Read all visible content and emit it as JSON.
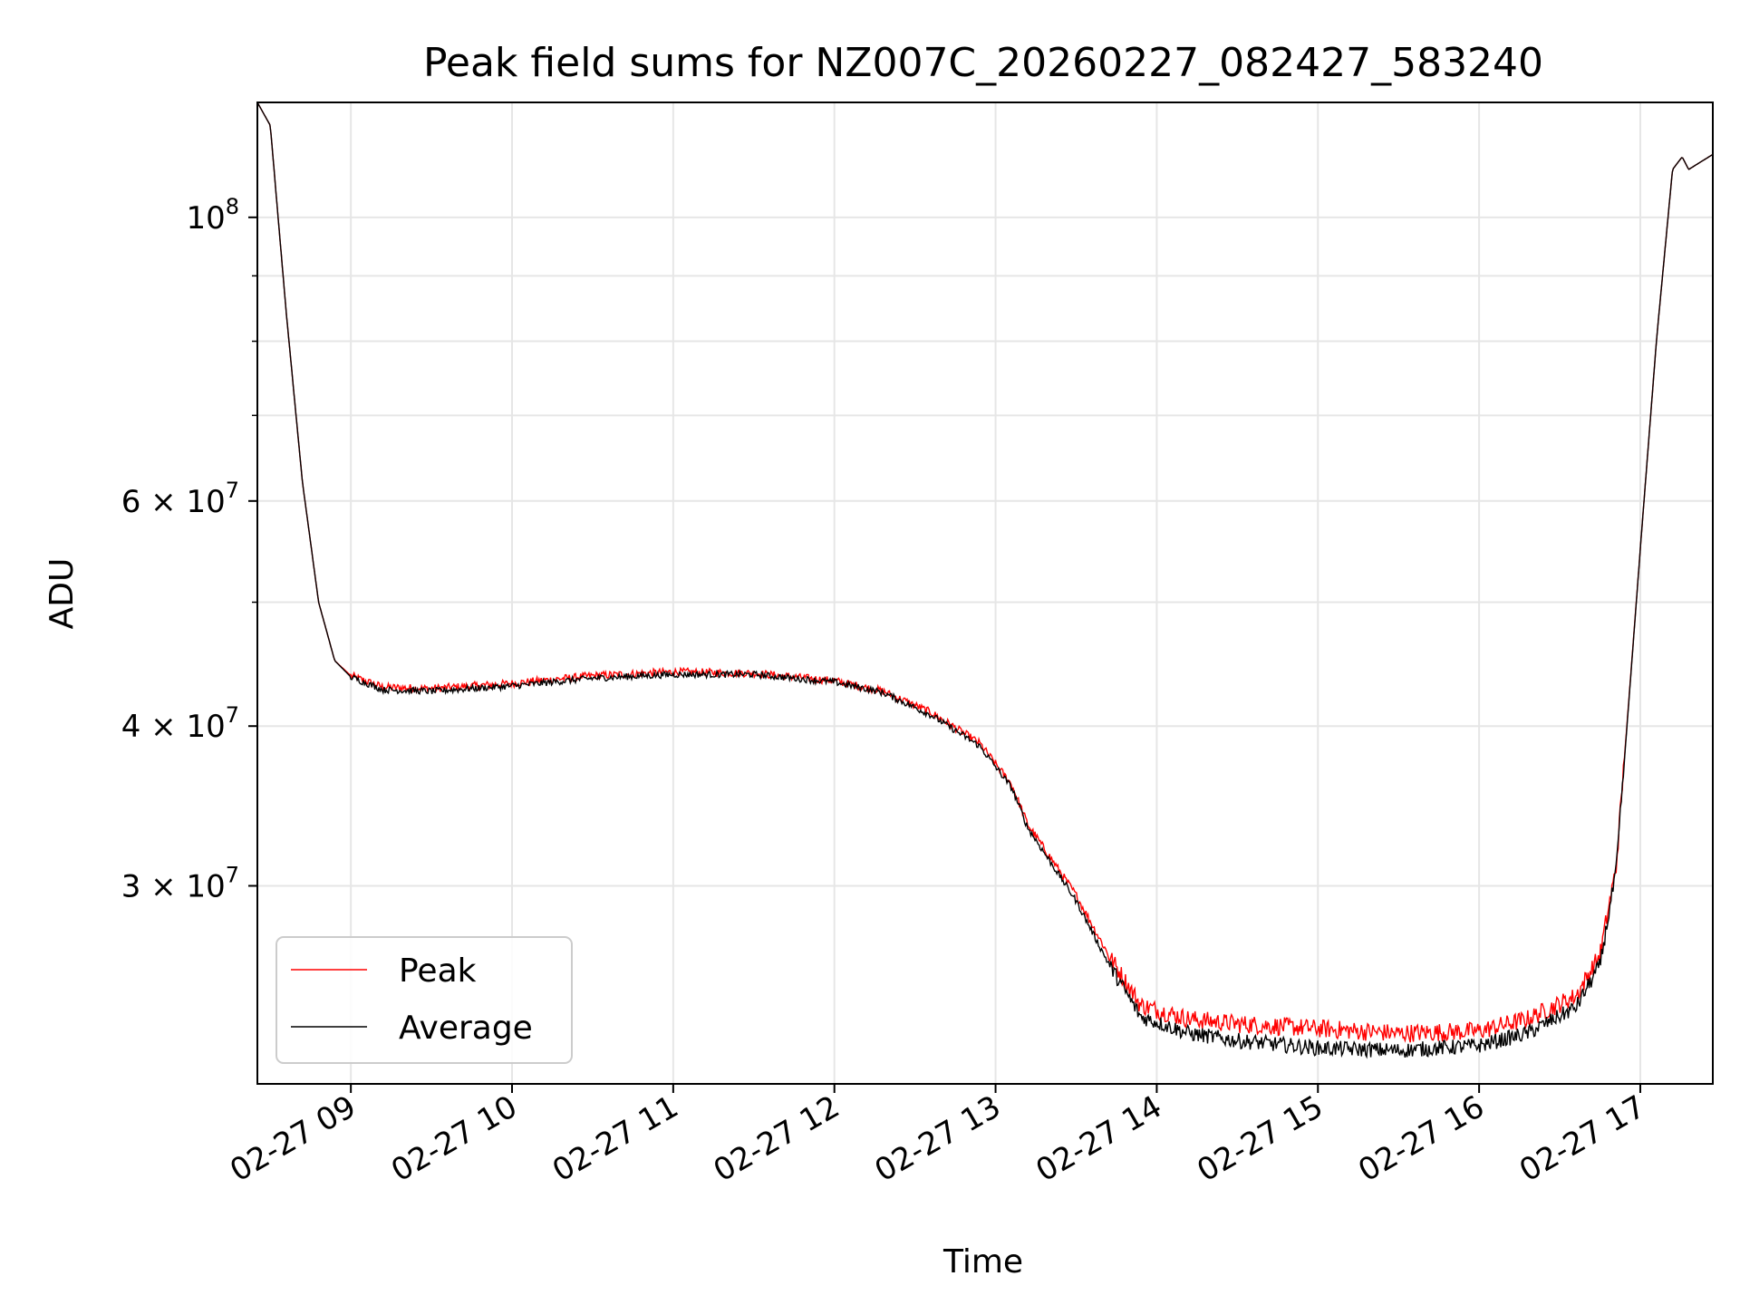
{
  "chart_data": {
    "type": "line",
    "title": "Peak field sums for NZ007C_20260227_082427_583240",
    "xlabel": "Time",
    "ylabel": "ADU",
    "yscale": "log",
    "xlim": [
      8.42,
      17.45
    ],
    "ylim": [
      21000000,
      123000000
    ],
    "x_ticks": [
      {
        "value": 9,
        "label": "02-27 09"
      },
      {
        "value": 10,
        "label": "02-27 10"
      },
      {
        "value": 11,
        "label": "02-27 11"
      },
      {
        "value": 12,
        "label": "02-27 12"
      },
      {
        "value": 13,
        "label": "02-27 13"
      },
      {
        "value": 14,
        "label": "02-27 14"
      },
      {
        "value": 15,
        "label": "02-27 15"
      },
      {
        "value": 16,
        "label": "02-27 16"
      },
      {
        "value": 17,
        "label": "02-27 17"
      }
    ],
    "y_major_ticks": [
      {
        "value": 30000000,
        "mantissa": "3",
        "exponent": "7"
      },
      {
        "value": 40000000,
        "mantissa": "4",
        "exponent": "7"
      },
      {
        "value": 60000000,
        "mantissa": "6",
        "exponent": "7"
      },
      {
        "value": 100000000,
        "mantissa": "",
        "exponent": "8"
      }
    ],
    "y_minor_grid": [
      50000000,
      70000000,
      80000000,
      90000000
    ],
    "grid": true,
    "legend": "lower-left",
    "series": [
      {
        "name": "Peak",
        "color": "#ff0000",
        "noise_amplitude": 0.012,
        "x": [
          8.42,
          8.5,
          8.6,
          8.7,
          8.8,
          8.9,
          9.0,
          9.2,
          9.5,
          10.0,
          10.5,
          11.0,
          11.5,
          12.0,
          12.3,
          12.6,
          12.9,
          13.1,
          13.2,
          13.5,
          13.7,
          13.9,
          14.2,
          14.5,
          15.0,
          15.5,
          16.0,
          16.3,
          16.6,
          16.75,
          16.85,
          17.0,
          17.1,
          17.2,
          17.26,
          17.3,
          17.35,
          17.45
        ],
        "values": [
          123000000,
          118000000,
          84000000,
          62000000,
          50000000,
          45000000,
          43800000,
          42900000,
          42800000,
          43200000,
          43800000,
          44100000,
          44000000,
          43400000,
          42600000,
          41000000,
          38800000,
          36000000,
          33500000,
          29500000,
          26500000,
          24200000,
          23600000,
          23400000,
          23200000,
          23000000,
          23100000,
          23600000,
          24600000,
          26500000,
          31000000,
          55000000,
          80000000,
          109000000,
          111500000,
          109000000,
          110000000,
          112000000
        ]
      },
      {
        "name": "Average",
        "color": "#000000",
        "noise_amplitude": 0.01,
        "x": [
          8.42,
          8.5,
          8.6,
          8.7,
          8.8,
          8.9,
          9.0,
          9.2,
          9.5,
          10.0,
          10.5,
          11.0,
          11.5,
          12.0,
          12.3,
          12.6,
          12.9,
          13.1,
          13.2,
          13.5,
          13.7,
          13.9,
          14.2,
          14.5,
          15.0,
          15.5,
          16.0,
          16.3,
          16.6,
          16.75,
          16.85,
          17.0,
          17.1,
          17.2,
          17.26,
          17.3,
          17.35,
          17.45
        ],
        "values": [
          123000000,
          118000000,
          84000000,
          62000000,
          50000000,
          45000000,
          43700000,
          42700000,
          42600000,
          43000000,
          43600000,
          43900000,
          43900000,
          43300000,
          42500000,
          40800000,
          38600000,
          35800000,
          33300000,
          29200000,
          26100000,
          23700000,
          23000000,
          22700000,
          22400000,
          22300000,
          22500000,
          23000000,
          24100000,
          26000000,
          30800000,
          55000000,
          80000000,
          109000000,
          111500000,
          109000000,
          110000000,
          112000000
        ]
      }
    ]
  }
}
